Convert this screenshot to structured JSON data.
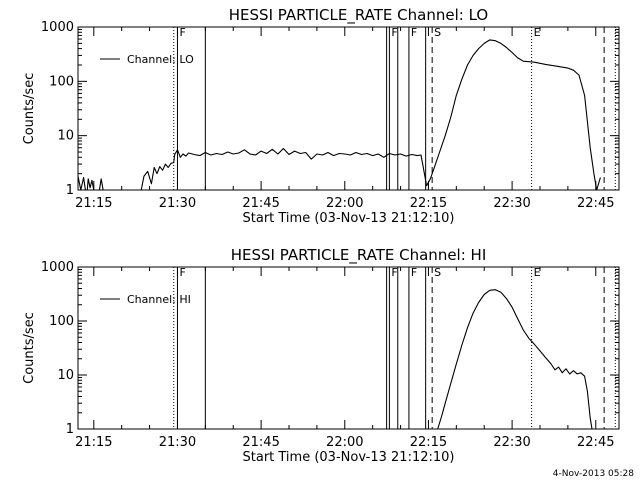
{
  "chart_data": [
    {
      "type": "line",
      "title": "HESSI PARTICLE_RATE Channel: LO",
      "xlabel": "Start Time (03-Nov-13 21:12:10)",
      "ylabel": "Counts/sec",
      "xlim": [
        "21:12:10",
        "22:49:10"
      ],
      "ylim": [
        1,
        1000
      ],
      "yscale": "log",
      "grid": false,
      "legend_position": "top-left",
      "x_ticks": [
        "21:15",
        "21:30",
        "21:45",
        "22:00",
        "22:15",
        "22:30",
        "22:45"
      ],
      "y_ticks": [
        "1",
        "10",
        "100",
        "1000"
      ],
      "series": [
        {
          "name": "Channel: LO",
          "color": "#000000",
          "points": [
            [
              "21:12:10",
              1.8
            ],
            [
              "21:12:40",
              1
            ],
            [
              "21:13:10",
              1.7
            ],
            [
              "21:13:30",
              1
            ],
            [
              "21:13:50",
              1
            ],
            [
              "21:14:00",
              1.6
            ],
            [
              "21:14:20",
              1.1
            ],
            [
              "21:14:40",
              1.5
            ],
            [
              "21:15:00",
              1
            ],
            [
              "21:15:20",
              1
            ],
            [
              "21:16:00",
              1
            ],
            [
              "21:16:20",
              1.6
            ],
            [
              "21:16:40",
              1
            ],
            [
              "21:18:00",
              1
            ],
            [
              "21:20:00",
              1
            ],
            [
              "21:22:00",
              1
            ],
            [
              "21:23:30",
              1
            ],
            [
              "21:24:00",
              1.8
            ],
            [
              "21:24:40",
              2.2
            ],
            [
              "21:25:20",
              1.3
            ],
            [
              "21:25:50",
              2.6
            ],
            [
              "21:26:20",
              2.0
            ],
            [
              "21:26:50",
              2.7
            ],
            [
              "21:27:20",
              2.3
            ],
            [
              "21:27:50",
              3.0
            ],
            [
              "21:28:20",
              2.6
            ],
            [
              "21:28:50",
              3.1
            ],
            [
              "21:29:20",
              3.2
            ],
            [
              "21:29:30",
              4.5
            ],
            [
              "21:30:00",
              5.5
            ],
            [
              "21:30:30",
              4.0
            ],
            [
              "21:31:00",
              4.6
            ],
            [
              "21:31:30",
              4.2
            ],
            [
              "21:32:00",
              4.8
            ],
            [
              "21:33:00",
              4.5
            ],
            [
              "21:34:00",
              4.3
            ],
            [
              "21:35:00",
              4.9
            ],
            [
              "21:36:00",
              4.4
            ],
            [
              "21:37:00",
              4.7
            ],
            [
              "21:38:00",
              4.5
            ],
            [
              "21:39:00",
              5.0
            ],
            [
              "21:40:00",
              4.6
            ],
            [
              "21:41:00",
              4.8
            ],
            [
              "21:42:00",
              5.5
            ],
            [
              "21:43:00",
              4.6
            ],
            [
              "21:44:00",
              4.4
            ],
            [
              "21:45:00",
              5.2
            ],
            [
              "21:46:00",
              4.7
            ],
            [
              "21:47:00",
              5.6
            ],
            [
              "21:48:00",
              4.6
            ],
            [
              "21:49:00",
              5.8
            ],
            [
              "21:50:00",
              4.5
            ],
            [
              "21:51:00",
              5.2
            ],
            [
              "21:52:00",
              4.7
            ],
            [
              "21:53:00",
              4.9
            ],
            [
              "21:54:00",
              3.7
            ],
            [
              "21:55:00",
              4.6
            ],
            [
              "21:56:00",
              4.4
            ],
            [
              "21:57:00",
              4.9
            ],
            [
              "21:58:00",
              4.3
            ],
            [
              "21:59:00",
              4.7
            ],
            [
              "22:00:00",
              4.6
            ],
            [
              "22:01:00",
              4.4
            ],
            [
              "22:02:00",
              4.9
            ],
            [
              "22:03:00",
              4.5
            ],
            [
              "22:04:00",
              4.7
            ],
            [
              "22:05:00",
              4.3
            ],
            [
              "22:06:00",
              4.6
            ],
            [
              "22:07:00",
              4.0
            ],
            [
              "22:08:00",
              4.7
            ],
            [
              "22:09:00",
              4.4
            ],
            [
              "22:10:00",
              4.6
            ],
            [
              "22:11:00",
              4.2
            ],
            [
              "22:12:00",
              4.5
            ],
            [
              "22:13:00",
              4.3
            ],
            [
              "22:13:40",
              4.4
            ],
            [
              "22:14:40",
              1.2
            ],
            [
              "22:15:20",
              1.6
            ],
            [
              "22:16:00",
              2.5
            ],
            [
              "22:17:00",
              5
            ],
            [
              "22:18:00",
              10
            ],
            [
              "22:19:00",
              22
            ],
            [
              "22:20:00",
              55
            ],
            [
              "22:21:00",
              110
            ],
            [
              "22:22:00",
              200
            ],
            [
              "22:23:00",
              300
            ],
            [
              "22:24:00",
              400
            ],
            [
              "22:25:00",
              500
            ],
            [
              "22:26:00",
              580
            ],
            [
              "22:27:00",
              560
            ],
            [
              "22:28:00",
              500
            ],
            [
              "22:29:00",
              420
            ],
            [
              "22:30:00",
              340
            ],
            [
              "22:31:00",
              270
            ],
            [
              "22:32:00",
              235
            ],
            [
              "22:34:00",
              225
            ],
            [
              "22:36:00",
              205
            ],
            [
              "22:38:00",
              190
            ],
            [
              "22:40:00",
              175
            ],
            [
              "22:41:00",
              160
            ],
            [
              "22:42:00",
              130
            ],
            [
              "22:43:00",
              55
            ],
            [
              "22:44:00",
              6
            ],
            [
              "22:44:40",
              2
            ],
            [
              "22:45:10",
              1
            ],
            [
              "22:45:50",
              1.7
            ]
          ]
        }
      ],
      "vertical_markers": [
        {
          "time": "21:29:20",
          "style": "dotted"
        },
        {
          "time": "21:30:00",
          "style": "solid",
          "label": "F"
        },
        {
          "time": "21:35:00",
          "style": "solid"
        },
        {
          "time": "22:07:30",
          "style": "solid"
        },
        {
          "time": "22:08:00",
          "style": "solid",
          "label": "F"
        },
        {
          "time": "22:09:30",
          "style": "solid"
        },
        {
          "time": "22:11:30",
          "style": "solid",
          "label": "F"
        },
        {
          "time": "22:14:30",
          "style": "solid"
        },
        {
          "time": "22:15:40",
          "style": "dashed",
          "label": "S"
        },
        {
          "time": "22:33:30",
          "style": "dotted",
          "label": "E"
        },
        {
          "time": "22:46:30",
          "style": "dashed"
        },
        {
          "time": "22:48:30",
          "style": "dotted"
        }
      ]
    },
    {
      "type": "line",
      "title": "HESSI PARTICLE_RATE Channel: HI",
      "xlabel": "Start Time (03-Nov-13 21:12:10)",
      "ylabel": "Counts/sec",
      "xlim": [
        "21:12:10",
        "22:49:10"
      ],
      "ylim": [
        1,
        1000
      ],
      "yscale": "log",
      "grid": false,
      "legend_position": "top-left",
      "x_ticks": [
        "21:15",
        "21:30",
        "21:45",
        "22:00",
        "22:15",
        "22:30",
        "22:45"
      ],
      "y_ticks": [
        "1",
        "10",
        "100",
        "1000"
      ],
      "series": [
        {
          "name": "Channel: HI",
          "color": "#000000",
          "points": [
            [
              "22:16:40",
              1
            ],
            [
              "22:17:20",
              1.7
            ],
            [
              "22:18:00",
              3
            ],
            [
              "22:19:00",
              7
            ],
            [
              "22:20:00",
              16
            ],
            [
              "22:21:00",
              36
            ],
            [
              "22:22:00",
              75
            ],
            [
              "22:23:00",
              140
            ],
            [
              "22:24:00",
              220
            ],
            [
              "22:25:00",
              310
            ],
            [
              "22:26:00",
              370
            ],
            [
              "22:27:00",
              380
            ],
            [
              "22:28:00",
              340
            ],
            [
              "22:29:00",
              260
            ],
            [
              "22:30:00",
              180
            ],
            [
              "22:31:00",
              110
            ],
            [
              "22:32:00",
              68
            ],
            [
              "22:33:00",
              48
            ],
            [
              "22:34:00",
              37
            ],
            [
              "22:35:00",
              28
            ],
            [
              "22:36:00",
              21
            ],
            [
              "22:37:00",
              16
            ],
            [
              "22:37:40",
              12.5
            ],
            [
              "22:38:20",
              14
            ],
            [
              "22:39:00",
              11
            ],
            [
              "22:39:40",
              13
            ],
            [
              "22:40:20",
              10.5
            ],
            [
              "22:41:00",
              12
            ],
            [
              "22:41:40",
              10.5
            ],
            [
              "22:42:20",
              11
            ],
            [
              "22:43:00",
              9.5
            ],
            [
              "22:43:30",
              5
            ],
            [
              "22:44:00",
              1.6
            ],
            [
              "22:44:20",
              1
            ]
          ]
        }
      ],
      "vertical_markers": [
        {
          "time": "21:29:20",
          "style": "dotted"
        },
        {
          "time": "21:30:00",
          "style": "solid",
          "label": "F"
        },
        {
          "time": "21:35:00",
          "style": "solid"
        },
        {
          "time": "22:07:30",
          "style": "solid"
        },
        {
          "time": "22:08:00",
          "style": "solid",
          "label": "F"
        },
        {
          "time": "22:09:30",
          "style": "solid"
        },
        {
          "time": "22:11:30",
          "style": "solid",
          "label": "F"
        },
        {
          "time": "22:14:30",
          "style": "solid"
        },
        {
          "time": "22:15:40",
          "style": "dashed",
          "label": "S"
        },
        {
          "time": "22:33:30",
          "style": "dotted",
          "label": "E"
        },
        {
          "time": "22:46:30",
          "style": "dashed"
        },
        {
          "time": "22:48:30",
          "style": "dotted"
        }
      ]
    }
  ],
  "footer": {
    "timestamp": "4-Nov-2013 05:28"
  }
}
